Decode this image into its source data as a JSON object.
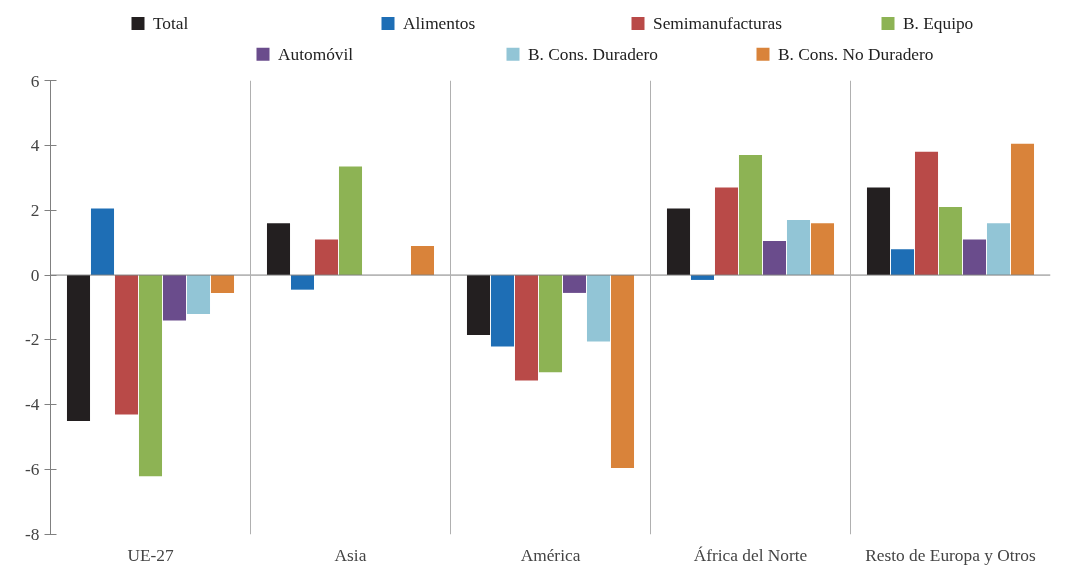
{
  "chart_data": {
    "type": "bar",
    "categories": [
      "UE-27",
      "Asia",
      "América",
      "África del Norte",
      "Resto de Europa y Otros"
    ],
    "series": [
      {
        "name": "Total",
        "color": "#231f20",
        "values": [
          -4.5,
          1.6,
          -1.85,
          2.05,
          2.7
        ]
      },
      {
        "name": "Alimentos",
        "color": "#1e6eb5",
        "values": [
          2.05,
          -0.45,
          -2.2,
          -0.15,
          0.8
        ]
      },
      {
        "name": "Semimanufacturas",
        "color": "#b94a48",
        "values": [
          -4.3,
          1.1,
          -3.25,
          2.7,
          3.8
        ]
      },
      {
        "name": "B. Equipo",
        "color": "#8db354",
        "values": [
          -6.2,
          3.35,
          -3.0,
          3.7,
          2.1
        ]
      },
      {
        "name": "Automóvil",
        "color": "#6a4c8c",
        "values": [
          -1.4,
          null,
          -0.55,
          1.05,
          1.1
        ]
      },
      {
        "name": "B. Cons. Duradero",
        "color": "#92c5d6",
        "values": [
          -1.2,
          null,
          -2.05,
          1.7,
          1.6
        ]
      },
      {
        "name": "B. Cons. No Duradero",
        "color": "#d9833a",
        "values": [
          -0.55,
          0.9,
          -5.95,
          1.6,
          4.05
        ]
      }
    ],
    "ylim": [
      -8,
      6
    ],
    "yticks": [
      -8,
      -6,
      -4,
      -2,
      0,
      2,
      4,
      6
    ],
    "grid": false,
    "legend": "top"
  }
}
